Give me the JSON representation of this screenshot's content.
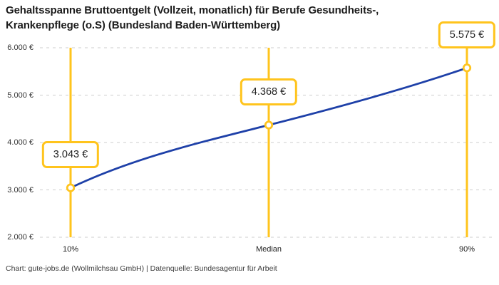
{
  "header": {
    "title": "Gehaltsspanne Bruttoentgelt (Vollzeit, monatlich) für Berufe Gesundheits-, Krankenpflege (o.S) (Bundesland Baden-Württemberg)"
  },
  "footer": {
    "text": "Chart: gute-jobs.de (Wollmilchsau GmbH) | Datenquelle: Bundesagentur für Arbeit"
  },
  "colors": {
    "accent": "#FFC41D",
    "line": "#1E40A8",
    "grid": "#CDCDCD",
    "marker_fill": "#FFFFFF",
    "text_dark": "#1C1C1C",
    "text_axis": "#333333"
  },
  "chart_data": {
    "type": "line",
    "title": "Gehaltsspanne Bruttoentgelt (Vollzeit, monatlich) für Berufe Gesundheits-, Krankenpflege (o.S) (Bundesland Baden-Württemberg)",
    "categories": [
      "10%",
      "Median",
      "90%"
    ],
    "values": [
      3043,
      4368,
      5575
    ],
    "value_labels": [
      "3.043 €",
      "4.368 €",
      "5.575 €"
    ],
    "ylim": [
      2000,
      6000
    ],
    "ytick_values": [
      2000,
      3000,
      4000,
      5000,
      6000
    ],
    "ytick_labels": [
      "2.000 €",
      "3.000 €",
      "4.000 €",
      "5.000 €",
      "6.000 €"
    ],
    "xlabel": "",
    "ylabel": "",
    "grid": "horizontal-dashed",
    "legend": "none",
    "marker": "open-circle",
    "annotations": "each category has a vertical accent line with a boxed value label above the data point"
  }
}
